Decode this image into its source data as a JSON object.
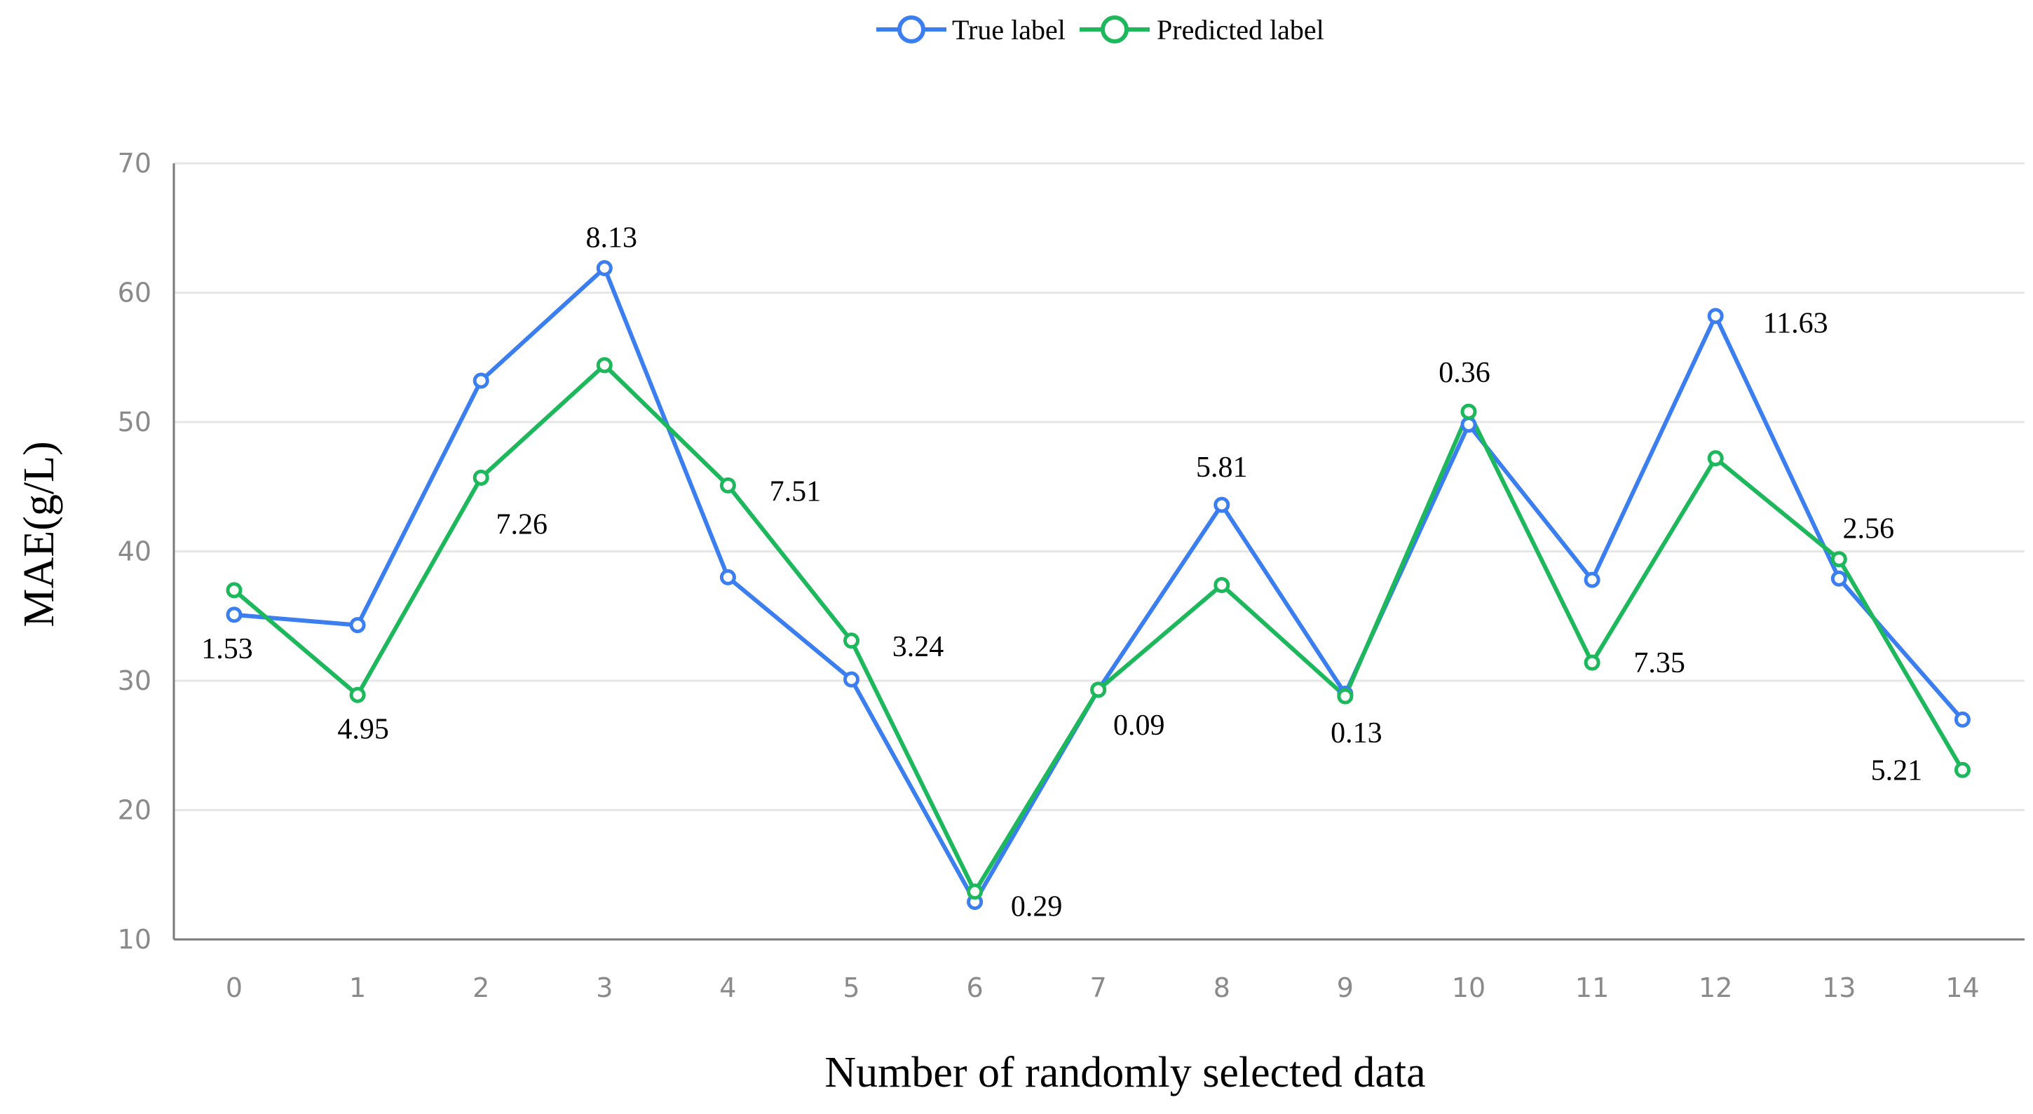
{
  "chart_data": {
    "type": "line",
    "title": "",
    "xlabel": "Number of randomly selected data",
    "ylabel": "MAE(g/L)",
    "ylim": [
      10,
      70
    ],
    "yticks": [
      10,
      20,
      30,
      40,
      50,
      60,
      70
    ],
    "grid": true,
    "legend_position": "top-center",
    "categories": [
      "0",
      "1",
      "2",
      "3",
      "4",
      "5",
      "6",
      "7",
      "8",
      "9",
      "10",
      "11",
      "12",
      "13",
      "14"
    ],
    "series": [
      {
        "name": "True label",
        "color": "#3b7ef0",
        "values": [
          35.1,
          34.3,
          53.2,
          61.9,
          38.0,
          30.1,
          12.9,
          29.3,
          43.6,
          29.0,
          49.8,
          37.8,
          58.2,
          37.9,
          27.0
        ]
      },
      {
        "name": "Predicted label",
        "color": "#1db85c",
        "values": [
          37.0,
          28.9,
          45.7,
          54.4,
          45.1,
          33.1,
          13.7,
          29.3,
          37.4,
          28.8,
          50.8,
          31.4,
          47.2,
          39.4,
          23.1
        ]
      }
    ],
    "annotations": [
      "1.53",
      "4.95",
      "7.26",
      "8.13",
      "7.51",
      "3.24",
      "0.29",
      "0.09",
      "5.81",
      "0.13",
      "0.36",
      "7.35",
      "11.63",
      "2.56",
      "5.21"
    ]
  }
}
